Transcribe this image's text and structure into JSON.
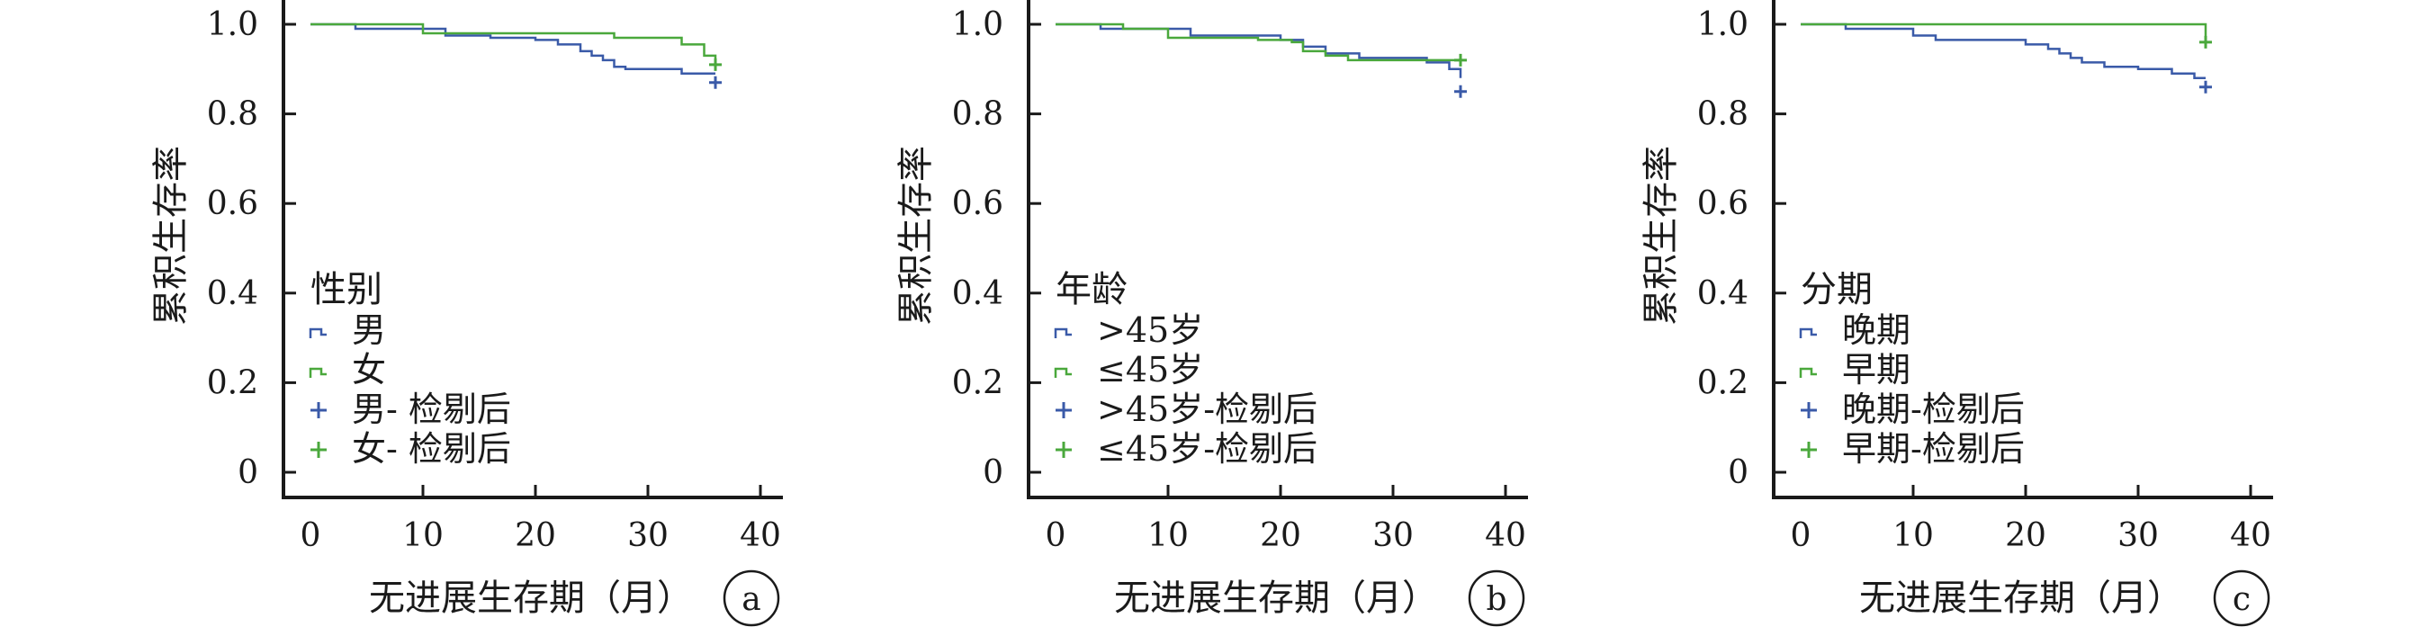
{
  "chart_data": [
    {
      "panel_label": "a",
      "type": "line",
      "subtype": "kaplan-meier",
      "xlabel": "无进展生存期（月）",
      "ylabel": "累积生存率",
      "xlim": [
        0,
        40
      ],
      "ylim": [
        0,
        1.0
      ],
      "x_ticks": [
        "0",
        "10",
        "20",
        "30",
        "40"
      ],
      "y_ticks": [
        "0",
        "0.2",
        "0.4",
        "0.6",
        "0.8",
        "1.0"
      ],
      "grid": false,
      "legend_title": "性别",
      "legend_position": "center-left",
      "legend": [
        "男",
        "女",
        "男- 检剔后",
        "女- 检剔后"
      ],
      "series": [
        {
          "name": "男",
          "color": "#3a5aa8",
          "steps": [
            [
              0,
              1.0
            ],
            [
              4,
              0.99
            ],
            [
              12,
              0.975
            ],
            [
              16,
              0.97
            ],
            [
              20,
              0.965
            ],
            [
              22,
              0.955
            ],
            [
              24,
              0.94
            ],
            [
              25,
              0.93
            ],
            [
              26,
              0.92
            ],
            [
              27,
              0.905
            ],
            [
              28,
              0.9
            ],
            [
              33,
              0.89
            ],
            [
              36,
              0.89
            ]
          ],
          "censored": [
            [
              36,
              0.87
            ]
          ]
        },
        {
          "name": "女",
          "color": "#4aa83c",
          "steps": [
            [
              0,
              1.0
            ],
            [
              10,
              0.98
            ],
            [
              27,
              0.97
            ],
            [
              33,
              0.955
            ],
            [
              35,
              0.93
            ],
            [
              36,
              0.91
            ]
          ],
          "censored": [
            [
              36,
              0.91
            ]
          ]
        }
      ]
    },
    {
      "panel_label": "b",
      "type": "line",
      "subtype": "kaplan-meier",
      "xlabel": "无进展生存期（月）",
      "ylabel": "累积生存率",
      "xlim": [
        0,
        40
      ],
      "ylim": [
        0,
        1.0
      ],
      "x_ticks": [
        "0",
        "10",
        "20",
        "30",
        "40"
      ],
      "y_ticks": [
        "0",
        "0.2",
        "0.4",
        "0.6",
        "0.8",
        "1.0"
      ],
      "grid": false,
      "legend_title": "年龄",
      "legend_position": "center-left",
      "legend": [
        ">45岁",
        "≤45岁",
        ">45岁-检剔后",
        "≤45岁-检剔后"
      ],
      "series": [
        {
          "name": ">45岁",
          "color": "#3a5aa8",
          "steps": [
            [
              0,
              1.0
            ],
            [
              4,
              0.99
            ],
            [
              12,
              0.975
            ],
            [
              20,
              0.965
            ],
            [
              22,
              0.95
            ],
            [
              24,
              0.935
            ],
            [
              27,
              0.925
            ],
            [
              33,
              0.915
            ],
            [
              35,
              0.9
            ],
            [
              36,
              0.88
            ]
          ],
          "censored": [
            [
              36,
              0.85
            ]
          ]
        },
        {
          "name": "≤45岁",
          "color": "#4aa83c",
          "steps": [
            [
              0,
              1.0
            ],
            [
              6,
              0.99
            ],
            [
              10,
              0.97
            ],
            [
              18,
              0.965
            ],
            [
              21,
              0.96
            ],
            [
              22,
              0.94
            ],
            [
              24,
              0.93
            ],
            [
              26,
              0.92
            ],
            [
              34,
              0.92
            ],
            [
              36,
              0.92
            ]
          ],
          "censored": [
            [
              36,
              0.92
            ]
          ]
        }
      ]
    },
    {
      "panel_label": "c",
      "type": "line",
      "subtype": "kaplan-meier",
      "xlabel": "无进展生存期（月）",
      "ylabel": "累积生存率",
      "xlim": [
        0,
        40
      ],
      "ylim": [
        0,
        1.0
      ],
      "x_ticks": [
        "0",
        "10",
        "20",
        "30",
        "40"
      ],
      "y_ticks": [
        "0",
        "0.2",
        "0.4",
        "0.6",
        "0.8",
        "1.0"
      ],
      "grid": false,
      "legend_title": "分期",
      "legend_position": "center-left",
      "legend": [
        "晚期",
        "早期",
        "晚期-检剔后",
        "早期-检剔后"
      ],
      "series": [
        {
          "name": "晚期",
          "color": "#3a5aa8",
          "steps": [
            [
              0,
              1.0
            ],
            [
              4,
              0.99
            ],
            [
              10,
              0.975
            ],
            [
              12,
              0.965
            ],
            [
              20,
              0.955
            ],
            [
              22,
              0.945
            ],
            [
              23,
              0.935
            ],
            [
              24,
              0.925
            ],
            [
              25,
              0.915
            ],
            [
              27,
              0.905
            ],
            [
              30,
              0.9
            ],
            [
              33,
              0.89
            ],
            [
              35,
              0.88
            ],
            [
              36,
              0.88
            ]
          ],
          "censored": [
            [
              36,
              0.86
            ]
          ]
        },
        {
          "name": "早期",
          "color": "#4aa83c",
          "steps": [
            [
              0,
              1.0
            ],
            [
              36,
              1.0
            ],
            [
              36,
              0.96
            ]
          ],
          "censored": [
            [
              36,
              0.96
            ]
          ]
        }
      ]
    }
  ]
}
